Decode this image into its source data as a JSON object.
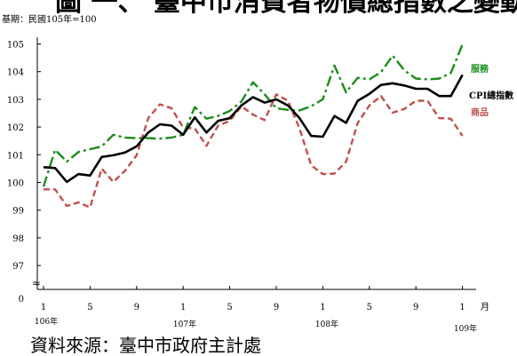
{
  "title": "圖 一、 臺中市消費者物價總指數之變動",
  "base_note": "基期：民國105年=100",
  "source": "資料來源：臺中市政府主計處",
  "colors": {
    "cpi": "#000000",
    "service": "#1a8c1a",
    "goods": "#c0504d",
    "axis": "#000000"
  },
  "chart_data": {
    "type": "line",
    "x": [
      "106/1",
      "106/2",
      "106/3",
      "106/4",
      "106/5",
      "106/6",
      "106/7",
      "106/8",
      "106/9",
      "106/10",
      "106/11",
      "106/12",
      "107/1",
      "107/2",
      "107/3",
      "107/4",
      "107/5",
      "107/6",
      "107/7",
      "107/8",
      "107/9",
      "107/10",
      "107/11",
      "107/12",
      "108/1",
      "108/2",
      "108/3",
      "108/4",
      "108/5",
      "108/6",
      "108/7",
      "108/8",
      "108/9",
      "108/10",
      "108/11",
      "108/12",
      "109/1"
    ],
    "x_tick_labels": [
      "1",
      "5",
      "9",
      "1",
      "5",
      "9",
      "1",
      "5",
      "9",
      "1"
    ],
    "x_month_unit": "月",
    "year_labels": [
      "106年",
      "107年",
      "108年",
      "109年"
    ],
    "y_tick_labels": [
      "0",
      "97",
      "98",
      "99",
      "100",
      "101",
      "102",
      "103",
      "104",
      "105"
    ],
    "ylim": [
      97,
      105
    ],
    "axis_break": "≈",
    "series": [
      {
        "name": "CPI總指數",
        "key": "cpi",
        "style": "solid",
        "values": [
          100.55,
          100.52,
          100.02,
          100.3,
          100.25,
          100.92,
          100.98,
          101.08,
          101.3,
          101.8,
          102.1,
          102.05,
          101.72,
          102.35,
          101.8,
          102.22,
          102.32,
          102.78,
          103.08,
          102.88,
          103.0,
          102.78,
          102.32,
          101.68,
          101.65,
          102.4,
          102.15,
          102.95,
          103.2,
          103.52,
          103.58,
          103.5,
          103.38,
          103.38,
          103.12,
          103.12,
          103.88
        ]
      },
      {
        "name": "服務",
        "key": "service",
        "style": "dashdot",
        "values": [
          99.85,
          101.18,
          100.75,
          101.1,
          101.2,
          101.3,
          101.72,
          101.62,
          101.6,
          101.6,
          101.58,
          101.62,
          101.72,
          102.72,
          102.3,
          102.4,
          102.58,
          102.92,
          103.62,
          103.18,
          102.68,
          102.62,
          102.6,
          102.75,
          103.0,
          104.22,
          103.25,
          103.78,
          103.72,
          103.98,
          104.58,
          104.05,
          103.75,
          103.72,
          103.75,
          103.95,
          104.98
        ]
      },
      {
        "name": "商品",
        "key": "goods",
        "style": "dashed",
        "values": [
          99.75,
          99.75,
          99.15,
          99.28,
          99.1,
          100.5,
          100.02,
          100.42,
          100.98,
          102.32,
          102.82,
          102.68,
          101.98,
          101.95,
          101.32,
          102.05,
          102.22,
          102.75,
          102.45,
          102.25,
          103.18,
          102.95,
          101.95,
          100.62,
          100.3,
          100.32,
          100.75,
          102.15,
          102.78,
          103.12,
          102.52,
          102.65,
          102.95,
          102.95,
          102.32,
          102.3,
          101.68
        ]
      }
    ],
    "legend_position": "right",
    "grid": false
  }
}
